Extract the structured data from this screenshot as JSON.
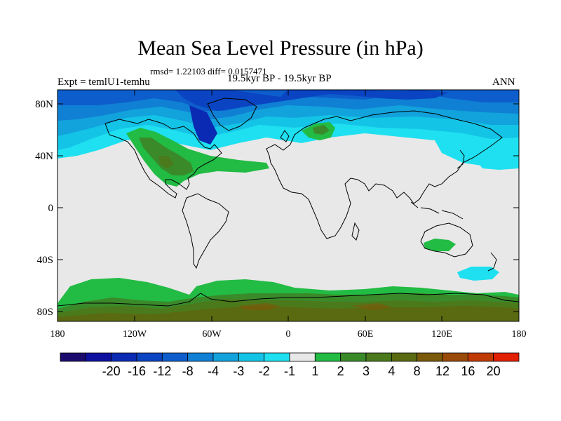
{
  "title": "Mean Sea Level Pressure (in hPa)",
  "stats": "rmsd= 1.22103 diff= 0.0157471",
  "expt": "Expt = temlU1-temhu",
  "period": "19.5kyr BP - 19.5kyr BP",
  "season": "ANN",
  "lat_labels": [
    "80N",
    "40N",
    "0",
    "40S",
    "80S"
  ],
  "lat_values": [
    80,
    40,
    0,
    -40,
    -80
  ],
  "lon_labels": [
    "180",
    "120W",
    "60W",
    "0",
    "60E",
    "120E",
    "180"
  ],
  "lon_values": [
    -180,
    -120,
    -60,
    0,
    60,
    120,
    180
  ],
  "colorbar": {
    "labels": [
      "-20",
      "-16",
      "-12",
      "-8",
      "-4",
      "-3",
      "-2",
      "-1",
      "1",
      "2",
      "3",
      "4",
      "8",
      "12",
      "16",
      "20"
    ],
    "colors": [
      "#1b0b6e",
      "#0f0fa0",
      "#0a2ab4",
      "#0a44c2",
      "#0d5ecc",
      "#0f80d4",
      "#12a2dc",
      "#14c4e6",
      "#1ee0f0",
      "#e8e8e8",
      "#22bb44",
      "#3a8a2a",
      "#4a7a1c",
      "#5a6a10",
      "#7a5a0a",
      "#9a4a08",
      "#c03a06",
      "#e22004"
    ]
  }
}
